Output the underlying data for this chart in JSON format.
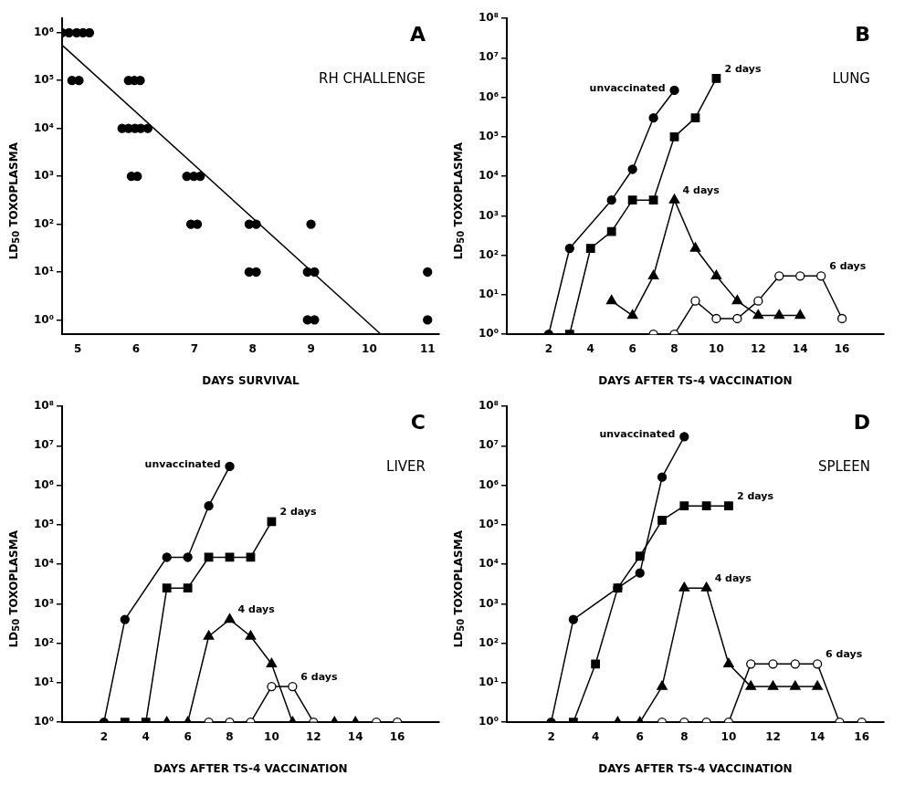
{
  "chart_data": [
    {
      "type": "scatter",
      "title": "RH CHALLENGE",
      "annotations": [
        "A"
      ],
      "xlabel": "DAYS SURVIVAL",
      "ylabel": "LD$_{50}$ TOXOPLASMA",
      "log": "y",
      "marker": "circle",
      "xlim": [
        4.73,
        11.2
      ],
      "xticks": [
        5,
        6,
        7,
        8,
        9,
        10,
        11
      ],
      "ylim": [
        0.5,
        2000000
      ],
      "yticks": [
        {
          "value": 1,
          "label": "10⁰"
        },
        {
          "value": 10,
          "label": "10¹"
        },
        {
          "value": 100,
          "label": "10²"
        },
        {
          "value": 1000,
          "label": "10³"
        },
        {
          "value": 10000,
          "label": "10⁴"
        },
        {
          "value": 100000,
          "label": "10⁵"
        },
        {
          "value": 1000000,
          "label": "10⁶"
        }
      ],
      "series": [
        {
          "color": "#000000",
          "x": [
            4.73,
            4.85,
            4.98,
            5.09,
            5.2,
            4.9,
            5.02,
            5.87,
            5.97,
            6.07,
            5.76,
            5.87,
            5.98,
            6.08,
            6.2,
            5.92,
            6.02,
            6.87,
            6.99,
            7.1,
            6.94,
            7.05,
            7.94,
            8.06,
            7.94,
            8.06,
            9.0,
            8.94,
            9.06,
            8.94,
            9.06,
            11,
            11
          ],
          "values": [
            1000000,
            1000000,
            1000000,
            1000000,
            1000000,
            100000,
            100000,
            100000,
            100000,
            100000,
            10000,
            10000,
            10000,
            10000,
            10000,
            1000,
            1000,
            1000,
            1000,
            1000,
            100,
            100,
            100,
            100,
            10,
            10,
            100,
            10,
            10,
            1,
            1,
            10,
            1
          ]
        },
        {
          "type": "line",
          "marker": "none",
          "color": "#000000",
          "x": [
            4.73,
            10.2
          ],
          "values": [
            550000,
            0.5
          ]
        }
      ]
    },
    {
      "type": "line",
      "title": "LUNG",
      "annotations": [
        "B"
      ],
      "xlabel": "DAYS AFTER TS-4 VACCINATION",
      "ylabel": "LD$_{50}$ TOXOPLASMA",
      "log": "y",
      "xlim": [
        0,
        18
      ],
      "xticks": [
        2,
        4,
        6,
        8,
        10,
        12,
        14,
        16
      ],
      "ylim": [
        1,
        100000000
      ],
      "yticks": [
        {
          "value": 1,
          "label": "10⁰"
        },
        {
          "value": 10,
          "label": "10¹"
        },
        {
          "value": 100,
          "label": "10²"
        },
        {
          "value": 1000,
          "label": "10³"
        },
        {
          "value": 10000,
          "label": "10⁴"
        },
        {
          "value": 100000,
          "label": "10⁵"
        },
        {
          "value": 1000000,
          "label": "10⁶"
        },
        {
          "value": 10000000,
          "label": "10⁷"
        },
        {
          "value": 100000000,
          "label": "10⁸"
        }
      ],
      "series": [
        {
          "name": "unvaccinated",
          "marker": "circle",
          "color": "#000000",
          "x": [
            2,
            3,
            5,
            6,
            7,
            8
          ],
          "values": [
            1,
            150,
            2500,
            15000,
            300000,
            1500000
          ]
        },
        {
          "name": "2 days",
          "marker": "square",
          "color": "#000000",
          "x": [
            3,
            4,
            5,
            6,
            7,
            8,
            9,
            10
          ],
          "values": [
            1,
            150,
            400,
            2500,
            2500,
            100000,
            300000,
            3000000
          ]
        },
        {
          "name": "4 days",
          "marker": "triangle",
          "color": "#000000",
          "x": [
            5,
            6,
            7,
            8,
            9,
            10,
            11,
            12,
            13,
            14
          ],
          "values": [
            7,
            3,
            30,
            2500,
            150,
            30,
            7,
            3,
            3,
            3
          ]
        },
        {
          "name": "6 days",
          "marker": "circle",
          "color": "#ffffff",
          "x": [
            7,
            8,
            9,
            10,
            11,
            12,
            13,
            14,
            15,
            16
          ],
          "values": [
            1,
            1,
            7,
            2.5,
            2.5,
            7,
            30,
            30,
            30,
            2.5
          ]
        }
      ]
    },
    {
      "type": "line",
      "title": "LIVER",
      "annotations": [
        "C"
      ],
      "xlabel": "DAYS AFTER TS-4 VACCINATION",
      "ylabel": "LD$_{50}$ TOXOPLASMA",
      "log": "y",
      "xlim": [
        0,
        18
      ],
      "xticks": [
        2,
        4,
        6,
        8,
        10,
        12,
        14,
        16
      ],
      "ylim": [
        1,
        100000000
      ],
      "yticks": [
        {
          "value": 1,
          "label": "10⁰"
        },
        {
          "value": 10,
          "label": "10¹"
        },
        {
          "value": 100,
          "label": "10²"
        },
        {
          "value": 1000,
          "label": "10³"
        },
        {
          "value": 10000,
          "label": "10⁴"
        },
        {
          "value": 100000,
          "label": "10⁵"
        },
        {
          "value": 1000000,
          "label": "10⁶"
        },
        {
          "value": 10000000,
          "label": "10⁷"
        },
        {
          "value": 100000000,
          "label": "10⁸"
        }
      ],
      "series": [
        {
          "name": "unvaccinated",
          "marker": "circle",
          "color": "#000000",
          "x": [
            2,
            3,
            5,
            6,
            7,
            8
          ],
          "values": [
            1,
            400,
            15000,
            15000,
            300000,
            3000000
          ]
        },
        {
          "name": "2 days",
          "marker": "square",
          "color": "#000000",
          "x": [
            3,
            4,
            5,
            6,
            7,
            8,
            9,
            10
          ],
          "values": [
            1,
            1,
            2500,
            2500,
            15000,
            15000,
            15000,
            120000
          ]
        },
        {
          "name": "4 days",
          "marker": "triangle",
          "color": "#000000",
          "x": [
            5,
            6,
            7,
            8,
            9,
            10,
            11,
            13,
            14
          ],
          "values": [
            1,
            1,
            150,
            400,
            150,
            30,
            1,
            1,
            1
          ]
        },
        {
          "name": "6 days",
          "marker": "circle",
          "color": "#ffffff",
          "x": [
            7,
            8,
            9,
            10,
            11,
            12,
            15,
            16
          ],
          "values": [
            1,
            1,
            1,
            8,
            8,
            1,
            1,
            1
          ]
        }
      ]
    },
    {
      "type": "line",
      "title": "SPLEEN",
      "annotations": [
        "D"
      ],
      "xlabel": "DAYS AFTER TS-4 VACCINATION",
      "ylabel": "LD$_{50}$ TOXOPLASMA",
      "log": "y",
      "xlim": [
        0,
        17
      ],
      "xticks": [
        2,
        4,
        6,
        8,
        10,
        12,
        14,
        16
      ],
      "ylim": [
        1,
        100000000
      ],
      "yticks": [
        {
          "value": 1,
          "label": "10⁰"
        },
        {
          "value": 10,
          "label": "10¹"
        },
        {
          "value": 100,
          "label": "10²"
        },
        {
          "value": 1000,
          "label": "10³"
        },
        {
          "value": 10000,
          "label": "10⁴"
        },
        {
          "value": 100000,
          "label": "10⁵"
        },
        {
          "value": 1000000,
          "label": "10⁶"
        },
        {
          "value": 10000000,
          "label": "10⁷"
        },
        {
          "value": 100000000,
          "label": "10⁸"
        }
      ],
      "series": [
        {
          "name": "unvaccinated",
          "marker": "circle",
          "color": "#000000",
          "x": [
            2,
            3,
            5,
            6,
            7,
            8
          ],
          "values": [
            1,
            400,
            2500,
            6000,
            1600000,
            17000000
          ]
        },
        {
          "name": "2 days",
          "marker": "square",
          "color": "#000000",
          "x": [
            3,
            4,
            5,
            6,
            7,
            8,
            9,
            10
          ],
          "values": [
            1,
            30,
            2500,
            16000,
            130000,
            300000,
            300000,
            300000
          ]
        },
        {
          "name": "4 days",
          "marker": "triangle",
          "color": "#000000",
          "x": [
            5,
            6,
            7,
            8,
            9,
            10,
            11,
            12,
            13,
            14
          ],
          "values": [
            1,
            1,
            8,
            2500,
            2500,
            30,
            8,
            8,
            8,
            8
          ]
        },
        {
          "name": "6 days",
          "marker": "circle",
          "color": "#ffffff",
          "x": [
            7,
            8,
            9,
            10,
            11,
            12,
            13,
            14,
            15,
            16
          ],
          "values": [
            1,
            1,
            1,
            1,
            30,
            30,
            30,
            30,
            1,
            1
          ]
        }
      ]
    }
  ]
}
